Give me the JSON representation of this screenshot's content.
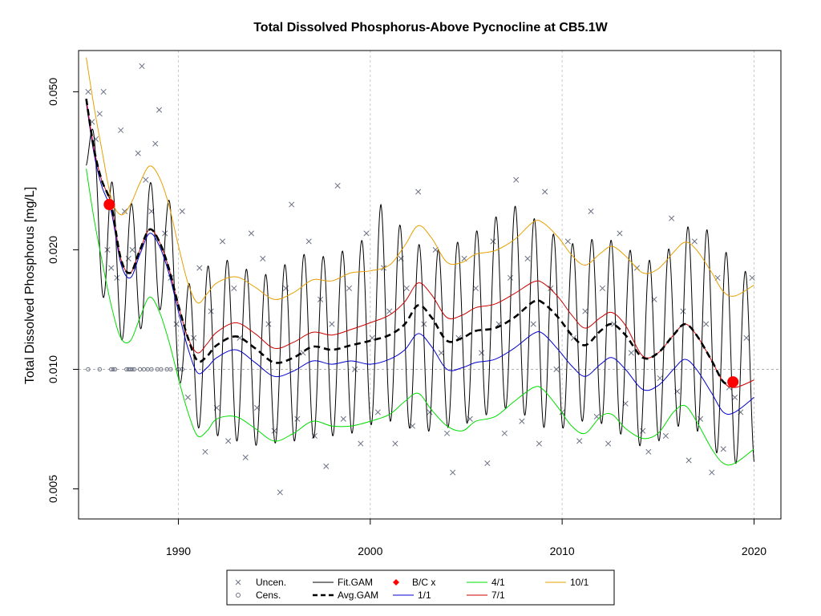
{
  "chart_data": {
    "type": "line",
    "title": "Total Dissolved Phosphorus-Above Pycnocline at CB5.1W",
    "xlabel": "",
    "ylabel": "Total Dissolved Phosphorus [mg/L]",
    "x_range": [
      1984.8,
      2021.4
    ],
    "y_range": [
      0.0042,
      0.0635
    ],
    "y_scale": "log",
    "x_ticks": [
      1990,
      2000,
      2010,
      2020
    ],
    "x_tick_labels": [
      "1990",
      "2000",
      "2010",
      "2020"
    ],
    "y_ticks": [
      0.005,
      0.01,
      0.02,
      0.05
    ],
    "y_tick_labels": [
      "0.005",
      "0.010",
      "0.020",
      "0.050"
    ],
    "grid": true,
    "reference_line_y": 0.01,
    "legend_position": "bottom",
    "legend": [
      {
        "label": "Uncen.",
        "symbol": "x",
        "color": "#6c7284"
      },
      {
        "label": "Cens.",
        "symbol": "circle",
        "color": "#6c7284"
      },
      {
        "label": "Fit.GAM",
        "symbol": "line",
        "color": "#000000"
      },
      {
        "label": "Avg.GAM",
        "symbol": "dashed",
        "color": "#000000"
      },
      {
        "label": "B/C x",
        "symbol": "diamond",
        "color": "#ff0000"
      },
      {
        "label": "1/1",
        "symbol": "line",
        "color": "#0000cc"
      },
      {
        "label": "4/1",
        "symbol": "line",
        "color": "#00dd00"
      },
      {
        "label": "7/1",
        "symbol": "line",
        "color": "#cc0000"
      },
      {
        "label": "10/1",
        "symbol": "line",
        "color": "#e6a000"
      }
    ],
    "series": [
      {
        "name": "Avg.GAM",
        "color": "#000000",
        "x": [
          1985.2,
          1985.6,
          1986.0,
          1986.5,
          1987.0,
          1987.5,
          1988.0,
          1988.5,
          1989.0,
          1989.5,
          1990.0,
          1990.5,
          1991.0,
          1991.5,
          1992.0,
          1993.0,
          1994.0,
          1995.0,
          1996.0,
          1997.0,
          1998.0,
          1999.0,
          2000.0,
          2001.0,
          2001.8,
          2002.5,
          2003.2,
          2004.0,
          2004.8,
          2005.5,
          2006.5,
          2007.5,
          2008.5,
          2009.0,
          2009.8,
          2010.5,
          2011.2,
          2012.0,
          2012.6,
          2013.3,
          2014.2,
          2015.0,
          2015.8,
          2016.4,
          2017.0,
          2017.8,
          2018.4,
          2018.9
        ],
        "y": [
          0.048,
          0.036,
          0.03,
          0.026,
          0.019,
          0.0175,
          0.02,
          0.0225,
          0.021,
          0.018,
          0.0145,
          0.012,
          0.0105,
          0.0108,
          0.0115,
          0.0121,
          0.0113,
          0.0104,
          0.0107,
          0.0114,
          0.0112,
          0.0115,
          0.0118,
          0.0122,
          0.013,
          0.0145,
          0.0135,
          0.0118,
          0.012,
          0.0125,
          0.0127,
          0.0135,
          0.0148,
          0.0147,
          0.0135,
          0.0122,
          0.0115,
          0.0125,
          0.013,
          0.0122,
          0.0107,
          0.011,
          0.0122,
          0.013,
          0.0122,
          0.0105,
          0.0093,
          0.0092
        ]
      },
      {
        "name": "1/1",
        "color": "#0000cc",
        "x": [
          1985.2,
          1985.6,
          1986.0,
          1986.5,
          1987.0,
          1987.5,
          1988.0,
          1988.5,
          1989.0,
          1989.5,
          1990.0,
          1990.5,
          1991.0,
          1991.5,
          1992.0,
          1993.0,
          1994.0,
          1995.0,
          1996.0,
          1997.0,
          1998.0,
          1999.0,
          2000.0,
          2001.0,
          2001.8,
          2002.5,
          2003.2,
          2004.0,
          2004.8,
          2005.5,
          2006.5,
          2007.5,
          2008.5,
          2009.0,
          2009.8,
          2010.5,
          2011.2,
          2012.0,
          2012.6,
          2013.3,
          2014.2,
          2015.0,
          2015.8,
          2016.4,
          2017.0,
          2017.8,
          2018.4,
          2019.0,
          2020.0
        ],
        "y": [
          0.047,
          0.035,
          0.029,
          0.025,
          0.0185,
          0.017,
          0.0195,
          0.022,
          0.0205,
          0.0175,
          0.014,
          0.0113,
          0.0098,
          0.0101,
          0.0107,
          0.0112,
          0.0104,
          0.0096,
          0.0099,
          0.0105,
          0.0103,
          0.0105,
          0.0103,
          0.0106,
          0.0112,
          0.0123,
          0.0114,
          0.01,
          0.0101,
          0.0104,
          0.0106,
          0.0113,
          0.0123,
          0.0123,
          0.0112,
          0.0102,
          0.0096,
          0.0103,
          0.0107,
          0.01,
          0.0089,
          0.0091,
          0.01,
          0.0106,
          0.01,
          0.0087,
          0.0078,
          0.0078,
          0.0085
        ]
      },
      {
        "name": "4/1",
        "color": "#00dd00",
        "x": [
          1985.2,
          1985.6,
          1986.0,
          1986.5,
          1987.0,
          1987.5,
          1988.0,
          1988.5,
          1989.0,
          1989.5,
          1990.0,
          1990.5,
          1991.0,
          1991.5,
          1992.0,
          1993.0,
          1994.0,
          1995.0,
          1996.0,
          1997.0,
          1998.0,
          1999.0,
          2000.0,
          2001.0,
          2001.8,
          2002.5,
          2003.2,
          2004.0,
          2004.8,
          2005.5,
          2006.5,
          2007.5,
          2008.5,
          2009.0,
          2009.8,
          2010.5,
          2011.2,
          2012.0,
          2012.6,
          2013.3,
          2014.2,
          2015.0,
          2015.8,
          2016.4,
          2017.0,
          2017.8,
          2018.4,
          2019.0,
          2020.0
        ],
        "y": [
          0.032,
          0.024,
          0.019,
          0.0145,
          0.012,
          0.0118,
          0.0135,
          0.0152,
          0.014,
          0.0118,
          0.0095,
          0.0078,
          0.0068,
          0.007,
          0.0075,
          0.0076,
          0.0071,
          0.0066,
          0.0069,
          0.0074,
          0.0072,
          0.0072,
          0.0074,
          0.0077,
          0.0083,
          0.0087,
          0.0079,
          0.0072,
          0.007,
          0.0074,
          0.0076,
          0.0083,
          0.009,
          0.0089,
          0.008,
          0.0072,
          0.0069,
          0.0076,
          0.0077,
          0.0071,
          0.0067,
          0.0069,
          0.0078,
          0.0081,
          0.0074,
          0.0063,
          0.0058,
          0.0058,
          0.0063
        ]
      },
      {
        "name": "7/1",
        "color": "#cc0000",
        "x": [
          1985.2,
          1985.6,
          1986.0,
          1986.5,
          1987.0,
          1987.5,
          1988.0,
          1988.5,
          1989.0,
          1989.5,
          1990.0,
          1990.5,
          1991.0,
          1991.5,
          1992.0,
          1993.0,
          1994.0,
          1995.0,
          1996.0,
          1997.0,
          1998.0,
          1999.0,
          2000.0,
          2001.0,
          2001.8,
          2002.5,
          2003.2,
          2004.0,
          2004.8,
          2005.5,
          2006.5,
          2007.5,
          2008.5,
          2009.0,
          2009.8,
          2010.5,
          2011.2,
          2012.0,
          2012.6,
          2013.3,
          2014.2,
          2015.0,
          2015.8,
          2016.4,
          2017.0,
          2017.8,
          2018.4,
          2019.0,
          2020.0
        ],
        "y": [
          0.048,
          0.036,
          0.03,
          0.026,
          0.019,
          0.0175,
          0.02,
          0.0225,
          0.021,
          0.018,
          0.0145,
          0.012,
          0.011,
          0.0116,
          0.0124,
          0.0131,
          0.0123,
          0.0113,
          0.0117,
          0.0124,
          0.0122,
          0.0126,
          0.0131,
          0.0137,
          0.0148,
          0.0165,
          0.0154,
          0.0135,
          0.0137,
          0.0143,
          0.0146,
          0.0155,
          0.0166,
          0.0165,
          0.0152,
          0.0137,
          0.0127,
          0.0135,
          0.0139,
          0.0129,
          0.0108,
          0.011,
          0.0122,
          0.013,
          0.0122,
          0.0105,
          0.0093,
          0.009,
          0.0094
        ]
      },
      {
        "name": "10/1",
        "color": "#e6a000",
        "x": [
          1985.2,
          1985.6,
          1986.0,
          1986.5,
          1987.0,
          1987.5,
          1988.0,
          1988.5,
          1989.0,
          1989.5,
          1990.0,
          1990.5,
          1991.0,
          1991.5,
          1992.0,
          1993.0,
          1994.0,
          1995.0,
          1996.0,
          1997.0,
          1998.0,
          1999.0,
          2000.0,
          2001.0,
          2001.8,
          2002.5,
          2003.2,
          2004.0,
          2004.8,
          2005.5,
          2006.5,
          2007.5,
          2008.5,
          2009.0,
          2009.8,
          2010.5,
          2011.2,
          2012.0,
          2012.6,
          2013.3,
          2014.2,
          2015.0,
          2015.8,
          2016.4,
          2017.0,
          2017.8,
          2018.4,
          2019.0,
          2020.0
        ],
        "y": [
          0.061,
          0.046,
          0.036,
          0.027,
          0.0245,
          0.026,
          0.0295,
          0.0325,
          0.0305,
          0.026,
          0.0205,
          0.0165,
          0.0147,
          0.0155,
          0.0165,
          0.0171,
          0.0161,
          0.015,
          0.0156,
          0.0168,
          0.0167,
          0.0175,
          0.0177,
          0.0183,
          0.0205,
          0.023,
          0.0214,
          0.0186,
          0.0186,
          0.0195,
          0.0199,
          0.0212,
          0.0235,
          0.0234,
          0.0215,
          0.0194,
          0.0183,
          0.0196,
          0.0204,
          0.0193,
          0.0175,
          0.0179,
          0.0197,
          0.0209,
          0.02,
          0.0175,
          0.0157,
          0.0153,
          0.0163
        ]
      },
      {
        "name": "Fit.GAM",
        "color": "#000000",
        "description_free": true,
        "x_start": 1985.2,
        "x_end": 2020.0,
        "peaks_y": [
          0.045,
          0.032,
          0.025,
          0.029,
          0.031,
          0.016,
          0.018,
          0.019,
          0.018,
          0.0172,
          0.0182,
          0.0195,
          0.0192,
          0.0198,
          0.021,
          0.026,
          0.023,
          0.0205,
          0.02,
          0.021,
          0.0225,
          0.0245,
          0.026,
          0.0235,
          0.0215,
          0.0205,
          0.0215,
          0.021,
          0.0195,
          0.0185,
          0.021,
          0.024,
          0.0215,
          0.0185,
          0.017
        ],
        "troughs_y": [
          0.03,
          0.0135,
          0.0115,
          0.013,
          0.0145,
          0.008,
          0.0068,
          0.0068,
          0.0065,
          0.0064,
          0.0066,
          0.0066,
          0.0068,
          0.0068,
          0.007,
          0.0075,
          0.0073,
          0.0069,
          0.0071,
          0.0072,
          0.0075,
          0.008,
          0.0079,
          0.0072,
          0.007,
          0.0074,
          0.0074,
          0.007,
          0.0064,
          0.0065,
          0.0072,
          0.0071,
          0.0062,
          0.0058,
          0.0057
        ]
      }
    ],
    "bc_points": {
      "name": "B/C x",
      "color": "#ff0000",
      "x": [
        1986.4,
        2018.9
      ],
      "y": [
        0.026,
        0.0093
      ]
    },
    "uncensored_points": {
      "name": "Uncen.",
      "x": [
        1985.3,
        1985.5,
        1985.7,
        1985.9,
        1986.1,
        1986.3,
        1986.5,
        1986.8,
        1987.0,
        1987.2,
        1987.4,
        1987.6,
        1987.9,
        1988.1,
        1988.3,
        1988.6,
        1988.8,
        1989.0,
        1989.3,
        1989.6,
        1989.9,
        1990.2,
        1990.5,
        1990.8,
        1991.1,
        1991.4,
        1991.7,
        1992.0,
        1992.3,
        1992.6,
        1992.9,
        1993.2,
        1993.5,
        1993.8,
        1994.1,
        1994.4,
        1994.7,
        1995.0,
        1995.3,
        1995.6,
        1995.9,
        1996.2,
        1996.5,
        1996.8,
        1997.1,
        1997.4,
        1997.7,
        1998.0,
        1998.3,
        1998.6,
        1998.9,
        1999.2,
        1999.5,
        1999.8,
        2000.1,
        2000.4,
        2000.7,
        2001.0,
        2001.3,
        2001.6,
        2001.9,
        2002.2,
        2002.5,
        2002.8,
        2003.1,
        2003.4,
        2003.7,
        2004.0,
        2004.3,
        2004.6,
        2004.9,
        2005.2,
        2005.5,
        2005.8,
        2006.1,
        2006.4,
        2006.7,
        2007.0,
        2007.3,
        2007.6,
        2007.9,
        2008.2,
        2008.5,
        2008.8,
        2009.1,
        2009.4,
        2009.7,
        2010.0,
        2010.3,
        2010.6,
        2010.9,
        2011.2,
        2011.5,
        2011.8,
        2012.1,
        2012.4,
        2012.7,
        2013.0,
        2013.3,
        2013.6,
        2013.9,
        2014.2,
        2014.5,
        2014.8,
        2015.1,
        2015.4,
        2015.7,
        2016.0,
        2016.3,
        2016.6,
        2016.9,
        2017.2,
        2017.5,
        2017.8,
        2018.1,
        2018.4,
        2018.7,
        2019.0,
        2019.3,
        2019.6,
        2019.9
      ],
      "y": [
        0.05,
        0.042,
        0.038,
        0.044,
        0.05,
        0.02,
        0.018,
        0.017,
        0.04,
        0.025,
        0.019,
        0.02,
        0.035,
        0.058,
        0.03,
        0.025,
        0.037,
        0.045,
        0.022,
        0.017,
        0.013,
        0.025,
        0.0085,
        0.012,
        0.018,
        0.0062,
        0.014,
        0.008,
        0.021,
        0.0066,
        0.016,
        0.012,
        0.006,
        0.022,
        0.008,
        0.019,
        0.013,
        0.007,
        0.0049,
        0.016,
        0.026,
        0.0075,
        0.011,
        0.021,
        0.0068,
        0.015,
        0.0057,
        0.013,
        0.029,
        0.0075,
        0.016,
        0.01,
        0.0065,
        0.022,
        0.012,
        0.0078,
        0.018,
        0.014,
        0.0065,
        0.019,
        0.016,
        0.0072,
        0.028,
        0.013,
        0.0078,
        0.02,
        0.011,
        0.0069,
        0.0055,
        0.012,
        0.019,
        0.0075,
        0.016,
        0.011,
        0.0058,
        0.021,
        0.013,
        0.0069,
        0.017,
        0.03,
        0.0074,
        0.019,
        0.013,
        0.0065,
        0.028,
        0.016,
        0.01,
        0.0078,
        0.021,
        0.012,
        0.0066,
        0.014,
        0.025,
        0.0076,
        0.016,
        0.0065,
        0.013,
        0.022,
        0.0082,
        0.011,
        0.018,
        0.007,
        0.0062,
        0.015,
        0.0095,
        0.0068,
        0.024,
        0.0088,
        0.014,
        0.0059,
        0.021,
        0.0075,
        0.013,
        0.0055,
        0.017,
        0.0063,
        0.009,
        0.0085,
        0.0078,
        0.012,
        0.017
      ]
    },
    "censored_points": {
      "name": "Cens.",
      "x": [
        1985.3,
        1985.9,
        1986.5,
        1986.6,
        1986.7,
        1987.3,
        1987.4,
        1987.5,
        1987.6,
        1987.7,
        1988.0,
        1988.2,
        1988.4,
        1988.6,
        1988.9,
        1989.1,
        1989.4,
        1989.6,
        1990.0,
        1990.2
      ],
      "y": [
        0.01,
        0.01,
        0.01,
        0.01,
        0.01,
        0.01,
        0.01,
        0.01,
        0.01,
        0.01,
        0.01,
        0.01,
        0.01,
        0.01,
        0.01,
        0.01,
        0.01,
        0.01,
        0.01,
        0.01
      ]
    }
  }
}
